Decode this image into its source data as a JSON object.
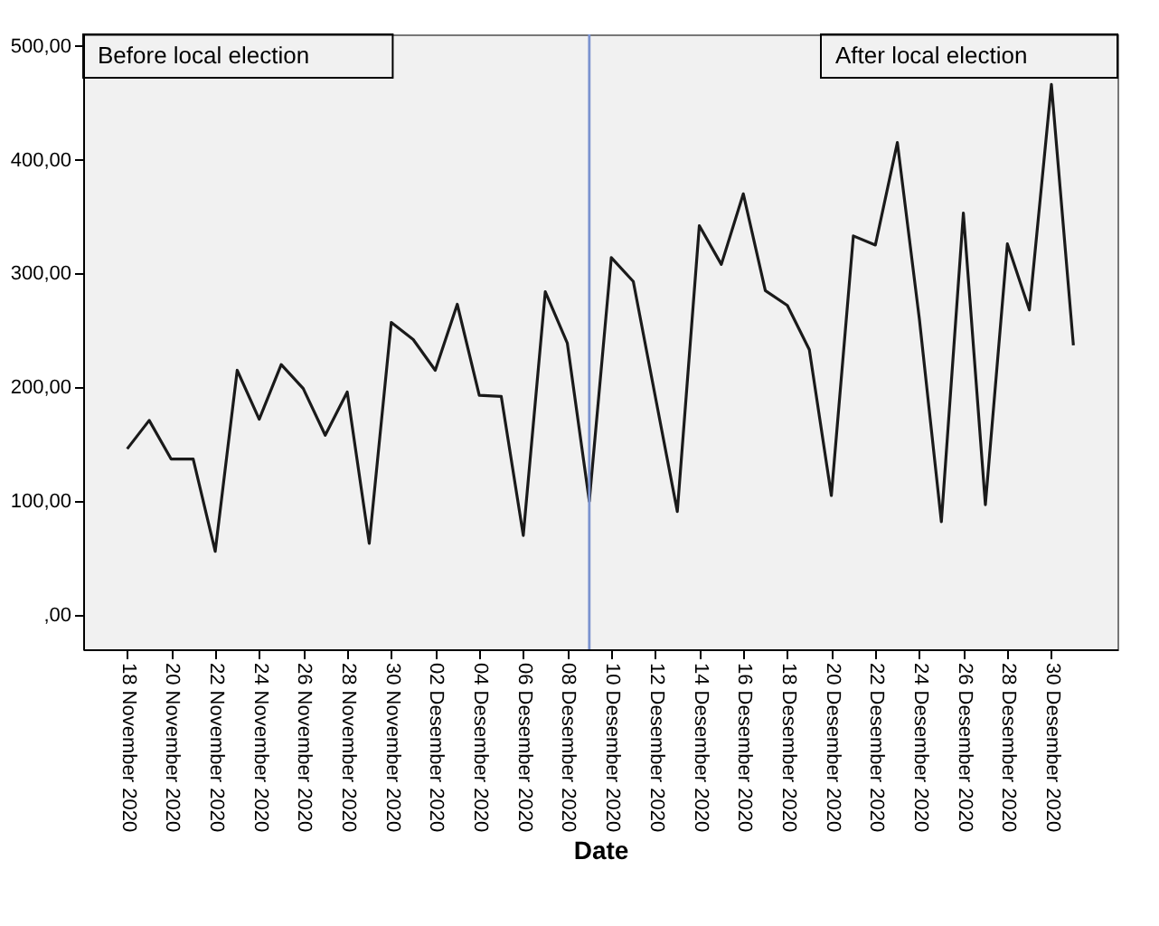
{
  "chart_data": {
    "type": "line",
    "xlabel": "Date",
    "x": [
      "2020-11-18",
      "2020-11-19",
      "2020-11-20",
      "2020-11-21",
      "2020-11-22",
      "2020-11-23",
      "2020-11-24",
      "2020-11-25",
      "2020-11-26",
      "2020-11-27",
      "2020-11-28",
      "2020-11-29",
      "2020-11-30",
      "2020-12-01",
      "2020-12-02",
      "2020-12-03",
      "2020-12-04",
      "2020-12-05",
      "2020-12-06",
      "2020-12-07",
      "2020-12-08",
      "2020-12-09",
      "2020-12-10",
      "2020-12-11",
      "2020-12-12",
      "2020-12-13",
      "2020-12-14",
      "2020-12-15",
      "2020-12-16",
      "2020-12-17",
      "2020-12-18",
      "2020-12-19",
      "2020-12-20",
      "2020-12-21",
      "2020-12-22",
      "2020-12-23",
      "2020-12-24",
      "2020-12-25",
      "2020-12-26",
      "2020-12-27",
      "2020-12-28",
      "2020-12-29",
      "2020-12-30",
      "2020-12-31"
    ],
    "series": [
      {
        "color": "#1a1a1a",
        "values": [
          146,
          171,
          137,
          137,
          56,
          215,
          172,
          220,
          199,
          158,
          196,
          63,
          257,
          242,
          215,
          273,
          193,
          192,
          70,
          284,
          239,
          100,
          314,
          293,
          192,
          91,
          342,
          308,
          370,
          285,
          272,
          233,
          105,
          333,
          325,
          415,
          260,
          82,
          353,
          97,
          326,
          268,
          466,
          237
        ]
      }
    ],
    "xlim": [
      "2020-11-16",
      "2021-01-02"
    ],
    "xticks": [
      {
        "value": "2020-11-18",
        "label": "18 November 2020"
      },
      {
        "value": "2020-11-20",
        "label": "20 November 2020"
      },
      {
        "value": "2020-11-22",
        "label": "22 November 2020"
      },
      {
        "value": "2020-11-24",
        "label": "24 November 2020"
      },
      {
        "value": "2020-11-26",
        "label": "26 November 2020"
      },
      {
        "value": "2020-11-28",
        "label": "28 November 2020"
      },
      {
        "value": "2020-11-30",
        "label": "30 November 2020"
      },
      {
        "value": "2020-12-02",
        "label": "02 Desember 2020"
      },
      {
        "value": "2020-12-04",
        "label": "04 Desember 2020"
      },
      {
        "value": "2020-12-06",
        "label": "06 Desember 2020"
      },
      {
        "value": "2020-12-08",
        "label": "08 Desember 2020"
      },
      {
        "value": "2020-12-10",
        "label": "10 Desember 2020"
      },
      {
        "value": "2020-12-12",
        "label": "12 Desember 2020"
      },
      {
        "value": "2020-12-14",
        "label": "14 Desember 2020"
      },
      {
        "value": "2020-12-16",
        "label": "16 Desember 2020"
      },
      {
        "value": "2020-12-18",
        "label": "18 Desember 2020"
      },
      {
        "value": "2020-12-20",
        "label": "20 Desember 2020"
      },
      {
        "value": "2020-12-22",
        "label": "22 Desember 2020"
      },
      {
        "value": "2020-12-24",
        "label": "24 Desember 2020"
      },
      {
        "value": "2020-12-26",
        "label": "26 Desember 2020"
      },
      {
        "value": "2020-12-28",
        "label": "28 Desember 2020"
      },
      {
        "value": "2020-12-30",
        "label": "30 Desember 2020"
      }
    ],
    "ylim": [
      -30,
      510
    ],
    "yticks": [
      {
        "value": 0,
        "label": ",00"
      },
      {
        "value": 100,
        "label": "100,00"
      },
      {
        "value": 200,
        "label": "200,00"
      },
      {
        "value": 300,
        "label": "300,00"
      },
      {
        "value": 400,
        "label": "400,00"
      },
      {
        "value": 500,
        "label": "500,00"
      }
    ],
    "ref_lines": [
      {
        "axis": "x",
        "value": "2020-12-09",
        "color": "#7b93d0"
      }
    ],
    "annotations": [
      "Before local election",
      "After local election"
    ],
    "grid": false,
    "marker": "none",
    "line_style": "solid"
  }
}
